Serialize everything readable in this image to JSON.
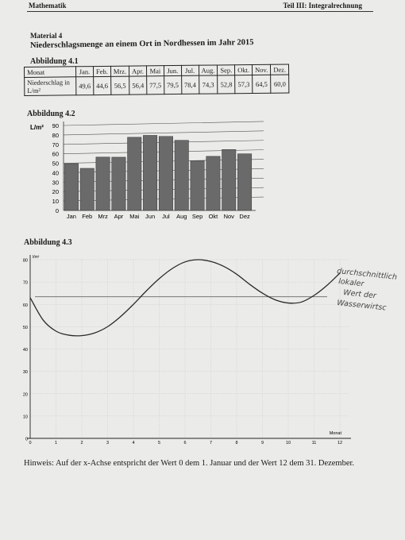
{
  "header": {
    "left": "Mathematik",
    "right": "Teil III: Integralrechnung"
  },
  "material": "Material 4",
  "title": "Niederschlagsmenge an einem Ort in Nordhessen im Jahr 2015",
  "figure41": {
    "label": "Abbildung 4.1",
    "row1_label": "Monat",
    "row2_label": "Niederschlag in L/m²",
    "months": [
      "Jan.",
      "Feb.",
      "Mrz.",
      "Apr.",
      "Mai",
      "Jun.",
      "Jul.",
      "Aug.",
      "Sep.",
      "Okt.",
      "Nov.",
      "Dez."
    ],
    "values": [
      "49,6",
      "44,6",
      "56,5",
      "56,4",
      "77,5",
      "79,5",
      "78,4",
      "74,3",
      "52,8",
      "57,3",
      "64,5",
      "60,0"
    ]
  },
  "figure42": {
    "label": "Abbildung 4.2",
    "unit": "L/m²"
  },
  "figure43": {
    "label": "Abbildung 4.3",
    "unit": "l/m²",
    "xlabel": "Monat",
    "handwriting": [
      "durchschnittlich",
      "lokaler",
      "Wert der",
      "Wasserwirtsc"
    ]
  },
  "hint": "Hinweis: Auf der x-Achse entspricht der Wert 0 dem 1. Januar und der Wert 12 dem 31. Dezember.",
  "chart_data": [
    {
      "type": "bar",
      "categories": [
        "Jan",
        "Feb",
        "Mrz",
        "Apr",
        "Mai",
        "Jun",
        "Jul",
        "Aug",
        "Sep",
        "Okt",
        "Nov",
        "Dez"
      ],
      "values": [
        49.6,
        44.6,
        56.5,
        56.4,
        77.5,
        79.5,
        78.4,
        74.3,
        52.8,
        57.3,
        64.5,
        60.0
      ],
      "ylabel": "L/m²",
      "ylim": [
        0,
        90
      ],
      "yticks": [
        0,
        10,
        20,
        30,
        40,
        50,
        60,
        70,
        80,
        90
      ],
      "grid": true,
      "bar_color": "#6a6a6a"
    },
    {
      "type": "line",
      "xlabel": "Monat",
      "ylabel": "l/m²",
      "xlim": [
        0,
        12
      ],
      "ylim": [
        0,
        80
      ],
      "xticks": [
        0,
        1,
        2,
        3,
        4,
        5,
        6,
        7,
        8,
        9,
        10,
        11,
        12
      ],
      "yticks": [
        0,
        10,
        20,
        30,
        40,
        50,
        60,
        70,
        80
      ],
      "grid": true,
      "series": [
        {
          "x": [
            0,
            0.5,
            1,
            1.5,
            2,
            2.5,
            3,
            3.5,
            4,
            4.5,
            5,
            5.5,
            6,
            6.5,
            7,
            7.5,
            8,
            8.5,
            9,
            9.5,
            10,
            10.5,
            11,
            11.5,
            12
          ],
          "y": [
            63,
            53,
            48,
            46.2,
            46,
            47.2,
            50,
            54.5,
            60,
            66,
            71.5,
            76,
            79,
            80,
            79.2,
            77,
            73.5,
            69,
            65,
            62,
            60.6,
            61,
            64,
            68.5,
            74
          ]
        }
      ],
      "hline": 63.4
    }
  ]
}
